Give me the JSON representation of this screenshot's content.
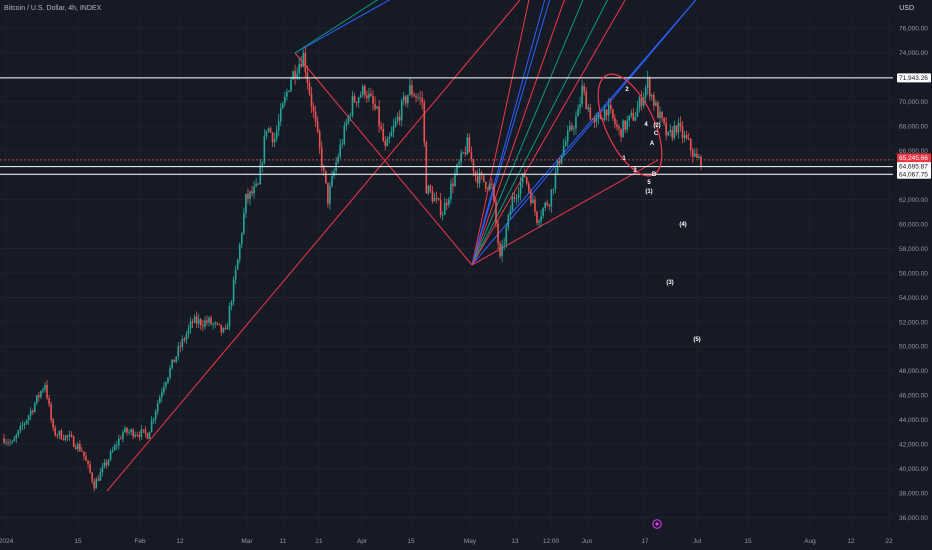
{
  "header": {
    "symbol_title": "Bitcoin / U.S. Dollar, 4h, INDEX",
    "currency": "USD"
  },
  "chart_data": {
    "type": "candlestick",
    "title": "Bitcoin / U.S. Dollar, 4h, INDEX",
    "ylabel": "USD",
    "ylim": [
      35000,
      77000
    ],
    "y_ticks": [
      36000,
      38000,
      40000,
      42000,
      44000,
      46000,
      48000,
      50000,
      52000,
      54000,
      56000,
      58000,
      60000,
      62000,
      64000,
      66000,
      68000,
      70000,
      72000,
      74000,
      76000
    ],
    "y_tick_labels": [
      "36,000.00",
      "38,000.00",
      "40,000.00",
      "42,000.00",
      "44,000.00",
      "46,000.00",
      "48,000.00",
      "50,000.00",
      "52,000.00",
      "54,000.00",
      "56,000.00",
      "58,000.00",
      "60,000.00",
      "62,000.00",
      "64,000.00",
      "66,000.00",
      "68,000.00",
      "70,000.00",
      "72,000.00",
      "74,000.00",
      "76,000.00"
    ],
    "x_tick_labels": [
      "2024",
      "15",
      "Feb",
      "12",
      "Mar",
      "11",
      "21",
      "Apr",
      "15",
      "May",
      "13",
      "12:00",
      "Jun",
      "17",
      "Jul",
      "15",
      "Aug",
      "12",
      "22"
    ],
    "price_path": [
      {
        "date": "2024-01-01",
        "price": 42500
      },
      {
        "date": "2024-01-03",
        "price": 42000
      },
      {
        "date": "2024-01-08",
        "price": 45000
      },
      {
        "date": "2024-01-11",
        "price": 47000
      },
      {
        "date": "2024-01-13",
        "price": 43000
      },
      {
        "date": "2024-01-17",
        "price": 42500
      },
      {
        "date": "2024-01-20",
        "price": 41500
      },
      {
        "date": "2024-01-23",
        "price": 38700
      },
      {
        "date": "2024-01-26",
        "price": 40500
      },
      {
        "date": "2024-01-30",
        "price": 43000
      },
      {
        "date": "2024-02-02",
        "price": 43000
      },
      {
        "date": "2024-02-05",
        "price": 42800
      },
      {
        "date": "2024-02-09",
        "price": 47000
      },
      {
        "date": "2024-02-13",
        "price": 50000
      },
      {
        "date": "2024-02-16",
        "price": 52000
      },
      {
        "date": "2024-02-20",
        "price": 52000
      },
      {
        "date": "2024-02-24",
        "price": 51000
      },
      {
        "date": "2024-02-27",
        "price": 57000
      },
      {
        "date": "2024-02-29",
        "price": 62000
      },
      {
        "date": "2024-03-03",
        "price": 63000
      },
      {
        "date": "2024-03-05",
        "price": 68000
      },
      {
        "date": "2024-03-07",
        "price": 67000
      },
      {
        "date": "2024-03-11",
        "price": 72000
      },
      {
        "date": "2024-03-14",
        "price": 73800
      },
      {
        "date": "2024-03-17",
        "price": 68000
      },
      {
        "date": "2024-03-20",
        "price": 62000
      },
      {
        "date": "2024-03-22",
        "price": 65000
      },
      {
        "date": "2024-03-26",
        "price": 70000
      },
      {
        "date": "2024-03-29",
        "price": 71000
      },
      {
        "date": "2024-04-01",
        "price": 69000
      },
      {
        "date": "2024-04-03",
        "price": 66000
      },
      {
        "date": "2024-04-07",
        "price": 69500
      },
      {
        "date": "2024-04-09",
        "price": 71000
      },
      {
        "date": "2024-04-12",
        "price": 70000
      },
      {
        "date": "2024-04-13",
        "price": 63000
      },
      {
        "date": "2024-04-17",
        "price": 61000
      },
      {
        "date": "2024-04-20",
        "price": 64000
      },
      {
        "date": "2024-04-23",
        "price": 66500
      },
      {
        "date": "2024-04-25",
        "price": 64000
      },
      {
        "date": "2024-04-29",
        "price": 63000
      },
      {
        "date": "2024-05-01",
        "price": 57000
      },
      {
        "date": "2024-05-04",
        "price": 62000
      },
      {
        "date": "2024-05-07",
        "price": 64000
      },
      {
        "date": "2024-05-10",
        "price": 60500
      },
      {
        "date": "2024-05-13",
        "price": 62000
      },
      {
        "date": "2024-05-16",
        "price": 66000
      },
      {
        "date": "2024-05-20",
        "price": 69000
      },
      {
        "date": "2024-05-21",
        "price": 71000
      },
      {
        "date": "2024-05-24",
        "price": 68000
      },
      {
        "date": "2024-05-27",
        "price": 69500
      },
      {
        "date": "2024-05-30",
        "price": 67500
      },
      {
        "date": "2024-06-03",
        "price": 69000
      },
      {
        "date": "2024-06-06",
        "price": 71500
      },
      {
        "date": "2024-06-08",
        "price": 69500
      },
      {
        "date": "2024-06-11",
        "price": 67000
      },
      {
        "date": "2024-06-13",
        "price": 68000
      },
      {
        "date": "2024-06-16",
        "price": 66500
      },
      {
        "date": "2024-06-18",
        "price": 65200
      },
      {
        "date": "2024-06-19",
        "price": 65245.66
      }
    ],
    "horizontal_levels": [
      71943.26,
      64695.87,
      64067.75
    ],
    "last_price": "65,245.66",
    "countdown": "02:25:58",
    "price_tags": [
      "71,943.26",
      "65,245.66",
      "64,695.87",
      "64,067.75"
    ],
    "wave_labels": [
      "2",
      "4",
      "(2)",
      "C",
      "A",
      "1",
      "3",
      "B",
      "5",
      "(1)",
      "(4)",
      "(3)",
      "(5)"
    ],
    "colors": {
      "background": "#161a25",
      "up_candle": "#26a69a",
      "down_candle": "#ef5350",
      "fan_red": "#f23645",
      "fan_blue": "#2962ff",
      "fan_green": "#089981",
      "level_line": "#ffffff",
      "ellipse": "#f23645",
      "event_marker": "#e040fb"
    }
  }
}
